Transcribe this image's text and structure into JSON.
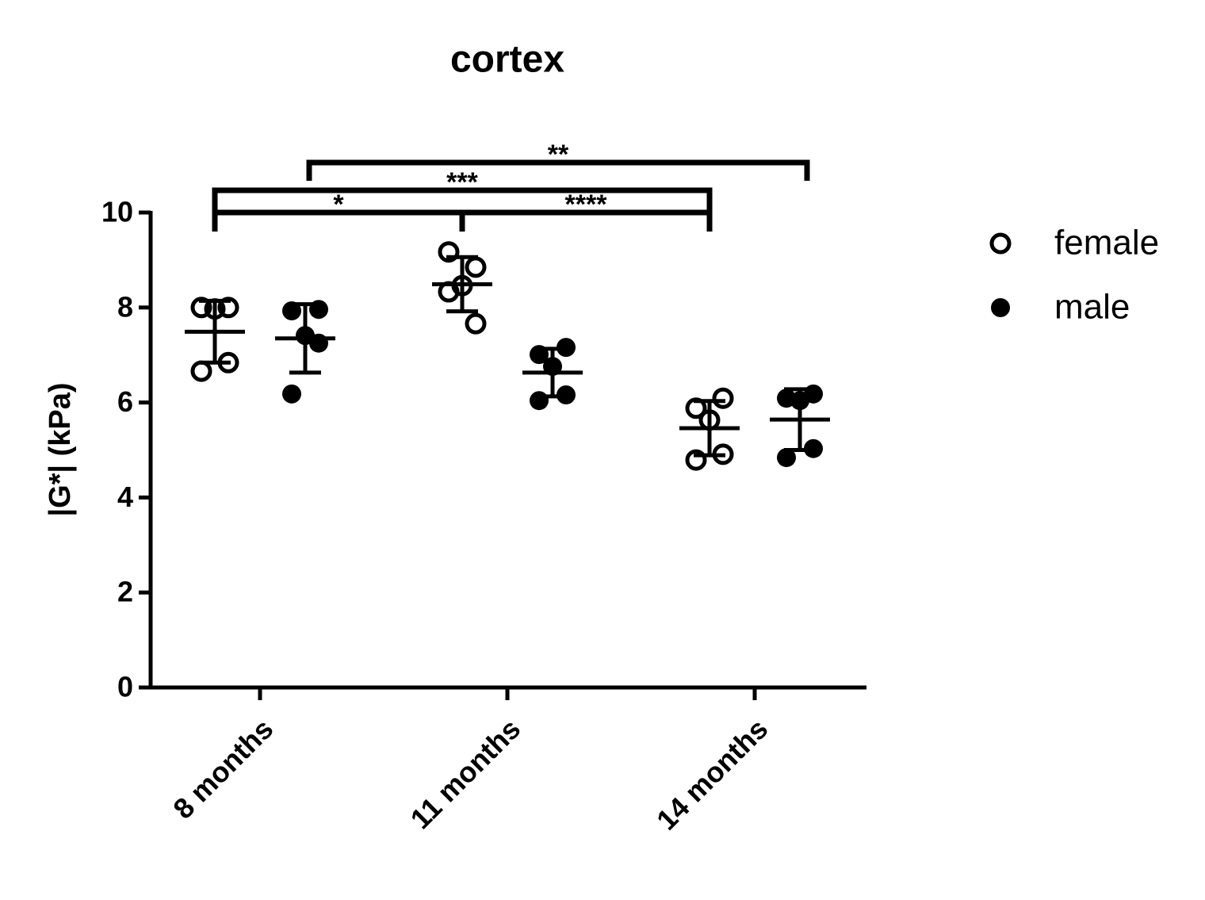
{
  "chart_data": {
    "type": "scatter",
    "title": "cortex",
    "y_label": "|G*| (kPa)",
    "categories": [
      "8 months",
      "11 months",
      "14 months"
    ],
    "series": [
      {
        "name": "female",
        "color": "#000000",
        "marker": "open",
        "values": [
          [
            8.0,
            8.0,
            7.97,
            6.66,
            6.84
          ],
          [
            9.17,
            8.85,
            8.46,
            8.33,
            7.66
          ],
          [
            5.88,
            6.09,
            5.63,
            4.79,
            4.91
          ]
        ],
        "mean": [
          7.49,
          8.49,
          5.46
        ],
        "sd": [
          0.65,
          0.57,
          0.57
        ]
      },
      {
        "name": "male",
        "color": "#000000",
        "marker": "filled",
        "values": [
          [
            7.93,
            7.96,
            7.41,
            6.18,
            7.25
          ],
          [
            7.01,
            7.16,
            6.76,
            6.04,
            6.16
          ],
          [
            6.09,
            6.18,
            6.04,
            4.84,
            5.03
          ]
        ],
        "mean": [
          7.35,
          6.63,
          5.64
        ],
        "sd": [
          0.72,
          0.5,
          0.64
        ]
      }
    ],
    "annotations": [
      "*",
      "****",
      "***",
      "**"
    ],
    "ylim": [
      0,
      10
    ],
    "yticks": [
      0,
      2,
      4,
      6,
      8,
      {
        "value": 10,
        "label": "10"
      }
    ],
    "legend": "right"
  }
}
